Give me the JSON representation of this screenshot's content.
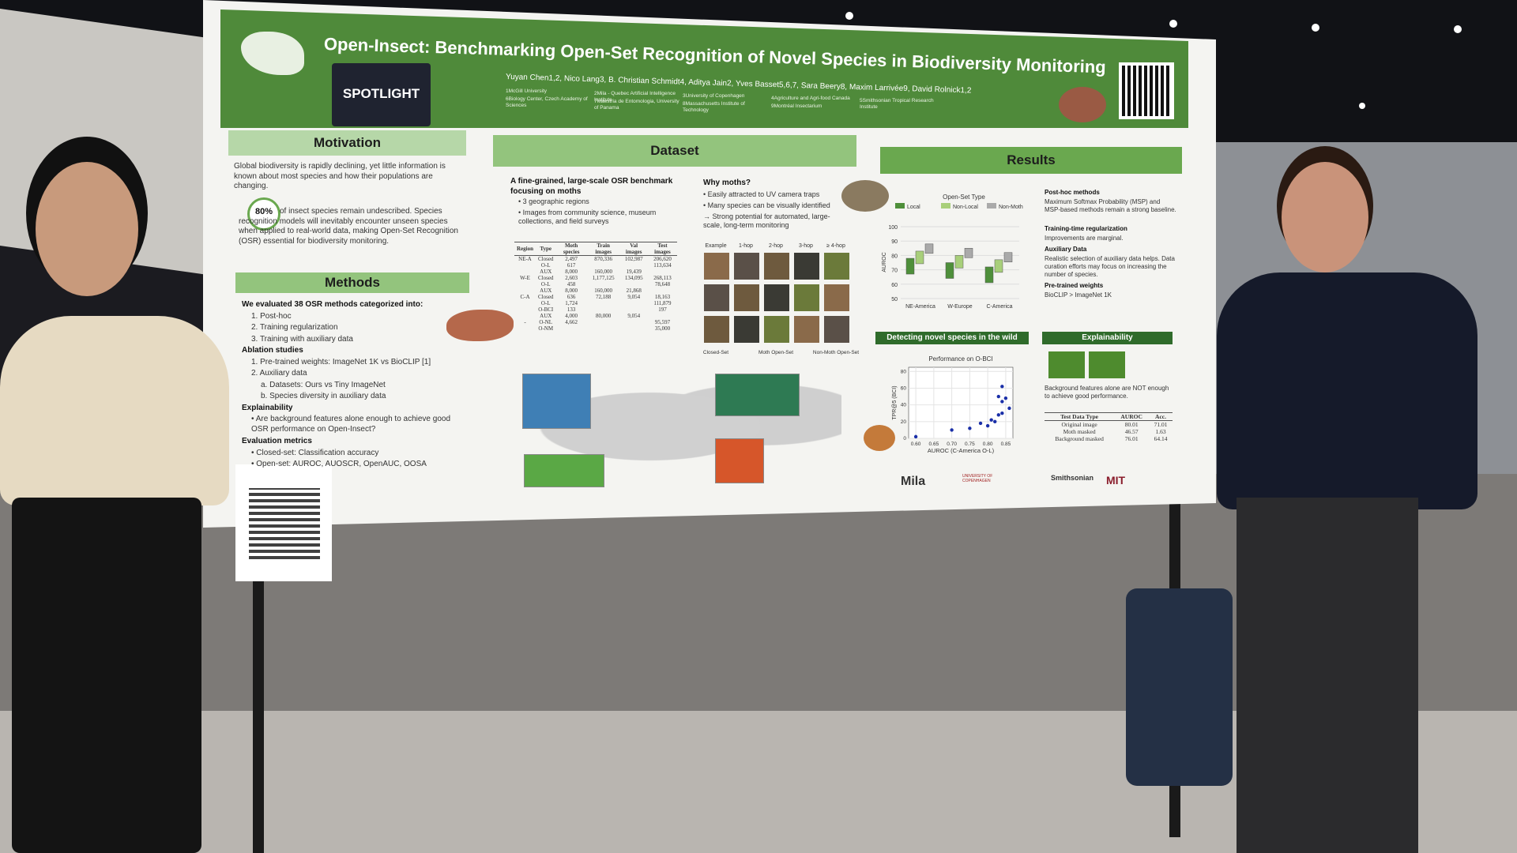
{
  "poster": {
    "title": "Open-Insect: Benchmarking Open-Set Recognition of Novel Species in Biodiversity Monitoring",
    "authors": "Yuyan Chen1,2, Nico Lang3, B. Christian Schmidt4, Aditya Jain2, Yves Basset5,6,7, Sara Beery8, Maxim Larrivée9, David Rolnick1,2",
    "affiliations": [
      "1McGill University",
      "2Mila - Quebec Artificial Intelligence Institute",
      "3University of Copenhagen",
      "4Agriculture and Agri-food Canada",
      "5Smithsonian Tropical Research Institute",
      "6Biology Center, Czech Academy of Sciences",
      "7Maestria de Entomologia, University of Panama",
      "8Massachusetts Institute of Technology",
      "9Montréal Insectarium"
    ],
    "badge": "SPOTLIGHT",
    "motivation": {
      "heading": "Motivation",
      "text1": "Global biodiversity is rapidly declining, yet little information is known about most species and how their populations are changing.",
      "stat": "80%",
      "text2": "of insect species remain undescribed. Species recognition models will inevitably encounter unseen species when applied to real-world data, making Open-Set Recognition (OSR) essential for biodiversity monitoring."
    },
    "methods": {
      "heading": "Methods",
      "lines": [
        "We evaluated 38 OSR methods categorized into:",
        "1. Post-hoc",
        "2. Training regularization",
        "3. Training with auxiliary data",
        "Ablation studies",
        "1. Pre-trained weights: ImageNet 1K vs BioCLIP [1]",
        "2. Auxiliary data",
        "a. Datasets: Ours vs Tiny ImageNet",
        "b. Species diversity in auxiliary data",
        "Explainability",
        "• Are background features alone enough to achieve good OSR performance on Open-Insect?",
        "Evaluation metrics",
        "• Closed-set: Classification accuracy",
        "• Open-set: AUROC, AUOSCR, OpenAUC, OOSA"
      ]
    },
    "dataset": {
      "heading": "Dataset",
      "lead": "A fine-grained, large-scale OSR benchmark focusing on moths",
      "bullets": [
        "• 3 geographic regions",
        "• Images from community science, museum collections, and field surveys"
      ],
      "why_heading": "Why moths?",
      "why": [
        "• Easily attracted to UV camera traps",
        "• Many species can be visually identified",
        "→ Strong potential for automated, large-scale, long-term monitoring"
      ],
      "image_columns": [
        "Example",
        "1-hop",
        "2-hop",
        "3-hop",
        "≥ 4-hop"
      ],
      "image_groups": [
        "Closed-Set",
        "Moth Open-Set",
        "Non-Moth Open-Set"
      ],
      "table": {
        "header": [
          "Region",
          "Type",
          "Moth species",
          "Train images",
          "Val images",
          "Test images"
        ],
        "rows": [
          [
            "NE-A",
            "Closed",
            "2,497",
            "870,336",
            "102,987",
            "206,620"
          ],
          [
            null,
            "O-L",
            "617",
            null,
            null,
            "113,634"
          ],
          [
            null,
            "AUX",
            "8,000",
            "160,000",
            "19,439",
            null
          ],
          [
            "W-E",
            "Closed",
            "2,603",
            "1,177,125",
            "134,095",
            "268,113"
          ],
          [
            null,
            "O-L",
            "458",
            null,
            null,
            "78,648"
          ],
          [
            null,
            "AUX",
            "8,000",
            "160,000",
            "21,868",
            null
          ],
          [
            "C-A",
            "Closed",
            "636",
            "72,188",
            "9,054",
            "18,163"
          ],
          [
            null,
            "O-L",
            "1,724",
            null,
            null,
            "111,879"
          ],
          [
            null,
            "O-BCI",
            "133",
            null,
            null,
            "197"
          ],
          [
            null,
            "AUX",
            "4,000",
            "80,000",
            "9,054",
            null
          ],
          [
            "-",
            "O-NL",
            "4,662",
            null,
            null,
            "95,597"
          ],
          [
            null,
            "O-NM",
            null,
            null,
            null,
            "35,000"
          ]
        ]
      }
    },
    "results": {
      "heading": "Results",
      "legend_title": "Open-Set Type",
      "legend": [
        "Local",
        "Non-Local",
        "Non-Moth"
      ],
      "ylabel": "AUROC",
      "yticks": [
        100,
        90,
        80,
        70,
        60,
        50
      ],
      "categories": [
        "NE-America",
        "W-Europe",
        "C-America"
      ],
      "notes": [
        "Post-hoc methods",
        "Maximum Softmax Probability (MSP) and MSP-based methods remain a strong baseline.",
        "Training-time regularization",
        "Improvements are marginal.",
        "Auxiliary Data",
        "Realistic selection of auxiliary data helps. Data curation efforts may focus on increasing the number of species.",
        "Pre-trained weights",
        "BioCLIP > ImageNet 1K"
      ]
    },
    "wild": {
      "heading": "Detecting novel species in the wild",
      "title": "Performance on O-BCI",
      "xlabel": "AUROC (C-America O-L)",
      "ylabel": "TPR@5 (BCI)",
      "xlim": [
        0.58,
        0.87
      ],
      "ylim": [
        0,
        85
      ],
      "xticks": [
        {
          "value": 0.6,
          "label": "0.60"
        },
        0.65,
        {
          "value": 0.7,
          "label": "0.70"
        },
        0.75,
        {
          "value": 0.8,
          "label": "0.80"
        },
        0.85
      ],
      "yticks": [
        0,
        20,
        40,
        60,
        80
      ],
      "x": [
        0.6,
        0.7,
        0.75,
        0.78,
        0.8,
        0.81,
        0.82,
        0.83,
        0.84,
        0.84,
        0.85,
        0.84,
        0.83,
        0.86
      ],
      "y": [
        2,
        10,
        12,
        18,
        15,
        22,
        20,
        28,
        30,
        44,
        48,
        62,
        50,
        36
      ]
    },
    "explain": {
      "heading": "Explainability",
      "text": "Background features alone are NOT enough to achieve good performance.",
      "table": {
        "header": [
          "Test Data Type",
          "AUROC",
          "Acc."
        ],
        "rows": [
          [
            "Original image",
            "80.01",
            "71.01"
          ],
          [
            "Moth masked",
            "46.57",
            "1.63"
          ],
          [
            "Background masked",
            "76.01",
            "64.14"
          ]
        ]
      }
    },
    "logos": [
      "Mila",
      "UNIVERSITY OF COPENHAGEN",
      "Smithsonian",
      "MIT"
    ]
  }
}
